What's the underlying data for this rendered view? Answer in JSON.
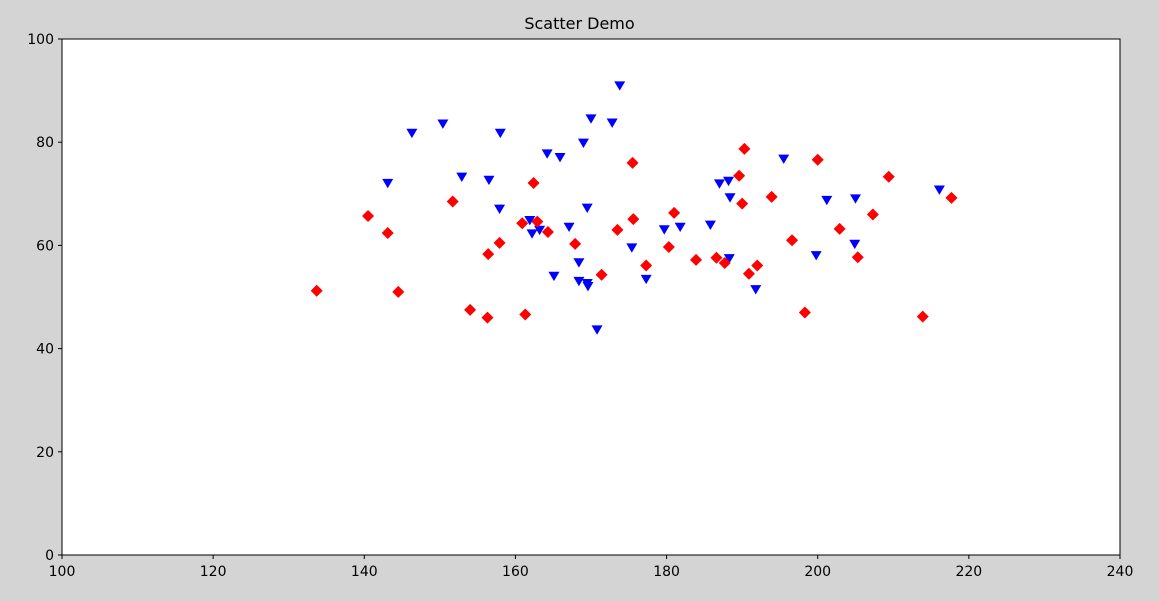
{
  "chart_data": {
    "type": "scatter",
    "title": "Scatter Demo",
    "xlabel": "",
    "ylabel": "",
    "xlim": [
      100,
      240
    ],
    "ylim": [
      0,
      100
    ],
    "xticks": [
      100,
      120,
      140,
      160,
      180,
      200,
      220,
      240
    ],
    "yticks": [
      0,
      20,
      40,
      60,
      80,
      100
    ],
    "grid": false,
    "series": [
      {
        "marker": "triangle-down",
        "color": "#0000ff",
        "points": [
          [
            143.1,
            72.1
          ],
          [
            146.3,
            81.8
          ],
          [
            150.4,
            83.6
          ],
          [
            152.9,
            73.3
          ],
          [
            156.5,
            72.7
          ],
          [
            158.0,
            81.8
          ],
          [
            157.9,
            67.1
          ],
          [
            161.9,
            64.9
          ],
          [
            162.2,
            62.3
          ],
          [
            163.2,
            63.0
          ],
          [
            164.2,
            77.8
          ],
          [
            165.1,
            54.1
          ],
          [
            165.9,
            77.1
          ],
          [
            167.1,
            63.6
          ],
          [
            168.4,
            56.7
          ],
          [
            168.4,
            53.1
          ],
          [
            169.0,
            79.9
          ],
          [
            169.5,
            67.3
          ],
          [
            169.5,
            52.7
          ],
          [
            169.6,
            52.1
          ],
          [
            170.0,
            84.6
          ],
          [
            170.8,
            43.7
          ],
          [
            172.8,
            83.8
          ],
          [
            173.8,
            91.0
          ],
          [
            175.4,
            59.6
          ],
          [
            177.3,
            53.5
          ],
          [
            179.7,
            63.1
          ],
          [
            181.8,
            63.6
          ],
          [
            185.8,
            64.0
          ],
          [
            187.0,
            72.0
          ],
          [
            188.2,
            72.5
          ],
          [
            188.4,
            69.3
          ],
          [
            188.3,
            57.5
          ],
          [
            191.8,
            51.5
          ],
          [
            195.5,
            76.8
          ],
          [
            199.8,
            58.1
          ],
          [
            201.2,
            68.8
          ],
          [
            204.9,
            60.3
          ],
          [
            205.0,
            69.1
          ],
          [
            216.1,
            70.8
          ]
        ]
      },
      {
        "marker": "diamond",
        "color": "#ff0000",
        "points": [
          [
            133.7,
            51.2
          ],
          [
            140.5,
            65.7
          ],
          [
            143.1,
            62.4
          ],
          [
            144.5,
            51.0
          ],
          [
            151.7,
            68.5
          ],
          [
            154.0,
            47.5
          ],
          [
            156.3,
            46.0
          ],
          [
            156.4,
            58.3
          ],
          [
            157.9,
            60.5
          ],
          [
            160.9,
            64.3
          ],
          [
            161.3,
            46.6
          ],
          [
            162.4,
            72.1
          ],
          [
            162.9,
            64.6
          ],
          [
            164.3,
            62.6
          ],
          [
            167.9,
            60.3
          ],
          [
            171.4,
            54.3
          ],
          [
            173.5,
            63.0
          ],
          [
            175.5,
            76.0
          ],
          [
            175.6,
            65.1
          ],
          [
            177.3,
            56.1
          ],
          [
            180.3,
            59.7
          ],
          [
            181.0,
            66.3
          ],
          [
            183.9,
            57.2
          ],
          [
            186.6,
            57.6
          ],
          [
            187.7,
            56.6
          ],
          [
            189.6,
            73.5
          ],
          [
            190.0,
            68.1
          ],
          [
            190.3,
            78.7
          ],
          [
            190.9,
            54.5
          ],
          [
            192.0,
            56.1
          ],
          [
            193.9,
            69.4
          ],
          [
            196.6,
            61.0
          ],
          [
            198.3,
            47.0
          ],
          [
            200.0,
            76.6
          ],
          [
            202.9,
            63.2
          ],
          [
            205.3,
            57.7
          ],
          [
            207.3,
            66.0
          ],
          [
            209.4,
            73.3
          ],
          [
            213.9,
            46.2
          ],
          [
            217.7,
            69.2
          ]
        ]
      }
    ]
  }
}
